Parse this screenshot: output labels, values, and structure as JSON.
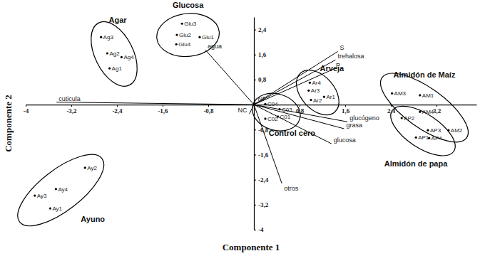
{
  "chart_data": {
    "type": "scatter",
    "x_label": "Componente 1",
    "y_label": "Componente 2",
    "color": "#000000",
    "xlim": [
      -4,
      3.9
    ],
    "ylim": [
      -4,
      2.8
    ],
    "xticks": [
      -4,
      {
        "value": -3.2,
        "label": "-3,2"
      },
      {
        "value": -2.4,
        "label": "-2,4"
      },
      {
        "value": -1.6,
        "label": "-1,6"
      },
      {
        "value": -0.8,
        "label": "-0,8"
      },
      {
        "value": 0.8,
        "label": "0,8"
      },
      {
        "value": 1.6,
        "label": "1,6"
      },
      {
        "value": 2.4,
        "label": "2,4"
      },
      {
        "value": 3.2,
        "label": "3,2"
      }
    ],
    "yticks": [
      {
        "value": 2.4,
        "label": "2,4"
      },
      {
        "value": 1.6,
        "label": "1,6"
      },
      {
        "value": 0.8,
        "label": "0,8"
      },
      {
        "value": -0.8,
        "label": "-0,8"
      },
      {
        "value": -1.6,
        "label": "-1,6"
      },
      {
        "value": -2.4,
        "label": "-2,4"
      },
      {
        "value": -3.2,
        "label": "-3,2"
      },
      -4
    ],
    "series": [
      {
        "name": "Agar",
        "labels": [
          "Ag3",
          "Ag2",
          "Ag4",
          "Ag1"
        ],
        "x": [
          -2.68,
          -2.57,
          -2.32,
          -2.53
        ],
        "values": [
          2.16,
          1.64,
          1.52,
          1.16
        ]
      },
      {
        "name": "Glucosa",
        "labels": [
          "Glu3",
          "Glu2",
          "Glu1",
          "Glu4"
        ],
        "x": [
          -1.26,
          -1.35,
          -0.95,
          -1.36
        ],
        "values": [
          2.59,
          2.23,
          2.16,
          1.93
        ]
      },
      {
        "name": "Ayuno",
        "labels": [
          "Ay2",
          "Ay4",
          "Ay3",
          "Ay1"
        ],
        "x": [
          -2.96,
          -3.47,
          -3.84,
          -3.57
        ],
        "values": [
          -2.02,
          -2.7,
          -2.91,
          -3.32
        ]
      },
      {
        "name": "Arveja",
        "labels": [
          "Ar4",
          "Ar3",
          "Ar2",
          "Ar1"
        ],
        "x": [
          0.98,
          0.96,
          1.0,
          1.23
        ],
        "values": [
          0.7,
          0.45,
          0.15,
          0.25
        ]
      },
      {
        "name": "Control cero",
        "labels": [
          "C04",
          "C03",
          "C01",
          "C02"
        ],
        "x": [
          0.2,
          0.45,
          0.42,
          0.2
        ],
        "values": [
          0.02,
          -0.15,
          -0.38,
          -0.45
        ]
      },
      {
        "name": "Almidón de Maíz",
        "labels": [
          "AM3",
          "AM1",
          "AM4",
          "AM2"
        ],
        "x": [
          2.42,
          2.91,
          2.91,
          3.41
        ],
        "values": [
          0.36,
          0.3,
          -0.23,
          -0.82
        ]
      },
      {
        "name": "Almidón de papa",
        "labels": [
          "AP2",
          "AP3",
          "AP1",
          "AP4"
        ],
        "x": [
          2.59,
          3.05,
          2.84,
          3.07
        ],
        "values": [
          -0.43,
          -0.82,
          -1.05,
          -1.07
        ]
      }
    ],
    "loadings": [
      {
        "name": "S",
        "x": 1.47,
        "y": 1.7
      },
      {
        "name": "trehalosa",
        "x": 1.43,
        "y": 1.43
      },
      {
        "name": "P",
        "x": 1.4,
        "y": 1.14
      },
      {
        "name": "agua",
        "x": -0.85,
        "y": 1.75
      },
      {
        "name": "cuticula",
        "x": -3.46,
        "y": 0.08
      },
      {
        "name": "NF",
        "x": 0.03,
        "y": 0.08
      },
      {
        "name": "NC",
        "x": -0.08,
        "y": -0.3
      },
      {
        "name": "glucógeno",
        "x": 1.64,
        "y": -0.55
      },
      {
        "name": "grasa",
        "x": 1.58,
        "y": -0.77
      },
      {
        "name": "glucosa",
        "x": 1.36,
        "y": -1.25
      },
      {
        "name": "otros",
        "x": 0.49,
        "y": -2.52
      }
    ]
  }
}
